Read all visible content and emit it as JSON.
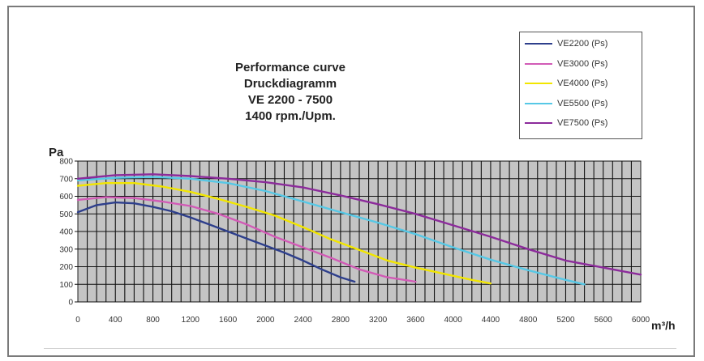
{
  "chart_data": {
    "type": "line",
    "title_lines": [
      "Performance curve",
      "Druckdiagramm",
      "VE 2200 - 7500",
      "1400 rpm./Upm."
    ],
    "ylabel": "Pa",
    "xlabel": "m³/h",
    "xlim": [
      0,
      6000
    ],
    "ylim": [
      0,
      800
    ],
    "x_ticks": [
      0,
      400,
      800,
      1200,
      1600,
      2000,
      2400,
      2800,
      3200,
      3600,
      4000,
      4400,
      4800,
      5200,
      5600,
      6000
    ],
    "y_ticks": [
      0,
      100,
      200,
      300,
      400,
      500,
      600,
      700,
      800
    ],
    "grid": true,
    "legend_position": "top-right",
    "series": [
      {
        "name": "VE2200 (Ps)",
        "color": "#2e3f8c",
        "x": [
          0,
          200,
          400,
          600,
          800,
          1000,
          1200,
          1400,
          1600,
          1800,
          2000,
          2200,
          2400,
          2600,
          2800,
          2950
        ],
        "y": [
          510,
          550,
          565,
          560,
          540,
          515,
          480,
          440,
          400,
          360,
          320,
          280,
          235,
          185,
          140,
          115
        ]
      },
      {
        "name": "VE3000 (Ps)",
        "color": "#d25bb6",
        "x": [
          0,
          300,
          600,
          900,
          1200,
          1500,
          1800,
          2100,
          2400,
          2700,
          3000,
          3300,
          3600
        ],
        "y": [
          580,
          595,
          590,
          570,
          545,
          500,
          440,
          370,
          310,
          250,
          185,
          140,
          115
        ]
      },
      {
        "name": "VE4000 (Ps)",
        "color": "#f2e600",
        "x": [
          0,
          300,
          600,
          900,
          1200,
          1500,
          1800,
          2100,
          2400,
          2700,
          3000,
          3300,
          3600,
          3900,
          4200,
          4400
        ],
        "y": [
          660,
          675,
          675,
          655,
          625,
          585,
          540,
          490,
          425,
          355,
          295,
          235,
          195,
          160,
          125,
          105
        ]
      },
      {
        "name": "VE5500 (Ps)",
        "color": "#56c8e6",
        "x": [
          0,
          400,
          800,
          1200,
          1600,
          2000,
          2400,
          2800,
          3200,
          3600,
          4000,
          4400,
          4800,
          5200,
          5400
        ],
        "y": [
          690,
          705,
          710,
          700,
          675,
          630,
          570,
          510,
          450,
          385,
          310,
          240,
          180,
          125,
          100
        ]
      },
      {
        "name": "VE7500 (Ps)",
        "color": "#8c2b9b",
        "x": [
          0,
          400,
          800,
          1200,
          1600,
          2000,
          2400,
          2800,
          3200,
          3600,
          4000,
          4400,
          4800,
          5200,
          5600,
          6000
        ],
        "y": [
          700,
          720,
          725,
          715,
          700,
          680,
          650,
          605,
          555,
          500,
          435,
          370,
          300,
          235,
          195,
          155
        ]
      }
    ]
  }
}
